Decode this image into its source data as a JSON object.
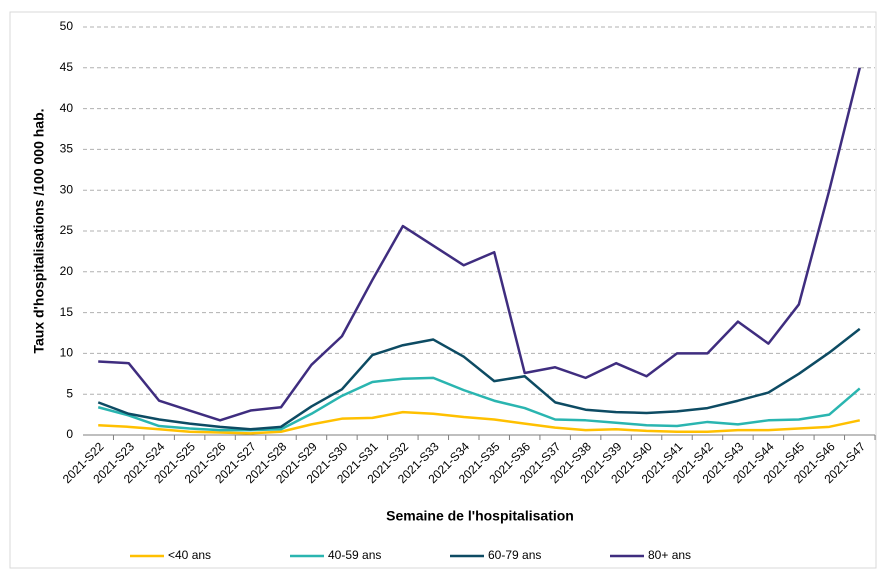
{
  "chart_data": {
    "type": "line",
    "x_label": "Semaine de l'hospitalisation",
    "y_label": "Taux d'hospitalisations /100 000 hab.",
    "categories": [
      "2021-S22",
      "2021-S23",
      "2021-S24",
      "2021-S25",
      "2021-S26",
      "2021-S27",
      "2021-S28",
      "2021-S29",
      "2021-S30",
      "2021-S31",
      "2021-S32",
      "2021-S33",
      "2021-S34",
      "2021-S35",
      "2021-S36",
      "2021-S37",
      "2021-S38",
      "2021-S39",
      "2021-S40",
      "2021-S41",
      "2021-S42",
      "2021-S43",
      "2021-S44",
      "2021-S45",
      "2021-S46",
      "2021-S47"
    ],
    "series": [
      {
        "name": "<40 ans",
        "color": "#ffc000",
        "values": [
          1.2,
          1.0,
          0.7,
          0.4,
          0.3,
          0.2,
          0.4,
          1.3,
          2.0,
          2.1,
          2.8,
          2.6,
          2.2,
          1.9,
          1.4,
          0.9,
          0.6,
          0.7,
          0.5,
          0.4,
          0.4,
          0.6,
          0.6,
          0.8,
          1.0,
          1.8
        ]
      },
      {
        "name": "40-59 ans",
        "color": "#2ab5b0",
        "values": [
          3.4,
          2.4,
          1.1,
          0.8,
          0.6,
          0.6,
          0.7,
          2.6,
          4.8,
          6.5,
          6.9,
          7.0,
          5.5,
          4.2,
          3.3,
          1.9,
          1.8,
          1.5,
          1.2,
          1.1,
          1.6,
          1.3,
          1.8,
          1.9,
          2.5,
          5.7
        ]
      },
      {
        "name": "60-79 ans",
        "color": "#0d4b63",
        "values": [
          4.0,
          2.6,
          1.9,
          1.4,
          1.0,
          0.7,
          1.0,
          3.5,
          5.6,
          9.8,
          11.0,
          11.7,
          9.6,
          6.6,
          7.2,
          4.0,
          3.1,
          2.8,
          2.7,
          2.9,
          3.3,
          4.2,
          5.2,
          7.5,
          10.1,
          13.0
        ]
      },
      {
        "name": "80+ ans",
        "color": "#3f2d7f",
        "values": [
          9.0,
          8.8,
          4.2,
          3.0,
          1.8,
          3.0,
          3.4,
          8.6,
          12.1,
          19.0,
          25.6,
          23.2,
          20.8,
          22.4,
          7.6,
          8.3,
          7.0,
          8.8,
          7.2,
          10.0,
          10.0,
          13.9,
          11.2,
          16.0,
          30.0,
          45.0
        ]
      }
    ],
    "ylim": [
      0,
      50
    ],
    "yticks": [
      0,
      5,
      10,
      15,
      20,
      25,
      30,
      35,
      40,
      45,
      50
    ],
    "grid": true
  }
}
